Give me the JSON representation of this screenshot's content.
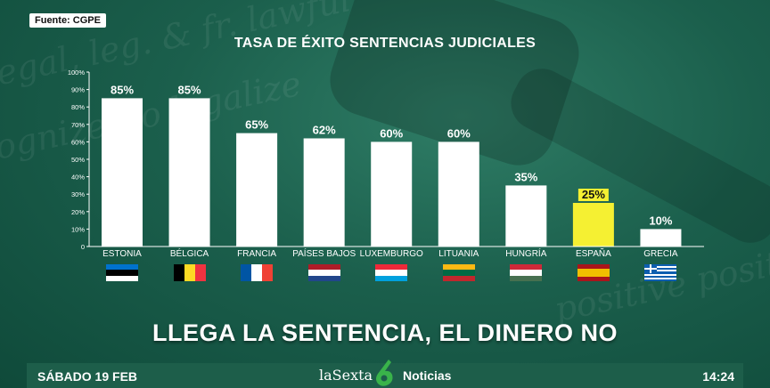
{
  "source_label": "Fuente: CGPE",
  "headline": "LLEGA LA SENTENCIA, EL DINERO NO",
  "footer": {
    "date": "SÁBADO 19 FEB",
    "brand": "laSexta",
    "brand_icon": "six-logo-icon",
    "news": "Noticias",
    "time": "14:24"
  },
  "colors": {
    "bar_default": "#ffffff",
    "bar_highlight": "#f5f032",
    "axis_text": "#ffffff"
  },
  "chart_data": {
    "type": "bar",
    "title": "TASA DE ÉXITO SENTENCIAS JUDICIALES",
    "categories": [
      "ESTONIA",
      "BÉLGICA",
      "FRANCIA",
      "PAÍSES BAJOS",
      "LUXEMBURGO",
      "LITUANIA",
      "HUNGRÍA",
      "ESPAÑA",
      "GRECIA"
    ],
    "values": [
      85,
      85,
      65,
      62,
      60,
      60,
      35,
      25,
      10
    ],
    "value_labels": [
      "85%",
      "85%",
      "65%",
      "62%",
      "60%",
      "60%",
      "35%",
      "25%",
      "10%"
    ],
    "highlight_category": "ESPAÑA",
    "ylim": [
      0,
      100
    ],
    "yticks": [
      0,
      10,
      20,
      30,
      40,
      50,
      60,
      70,
      80,
      90,
      100
    ],
    "ytick_labels": [
      "0",
      "10%",
      "20%",
      "30%",
      "40%",
      "50%",
      "60%",
      "70%",
      "80%",
      "90%",
      "100%"
    ],
    "grid": false,
    "xlabel": "",
    "ylabel": "",
    "flags": [
      "estonia-flag-icon",
      "belgium-flag-icon",
      "france-flag-icon",
      "netherlands-flag-icon",
      "luxembourg-flag-icon",
      "lithuania-flag-icon",
      "hungary-flag-icon",
      "spain-flag-icon",
      "greece-flag-icon"
    ]
  }
}
